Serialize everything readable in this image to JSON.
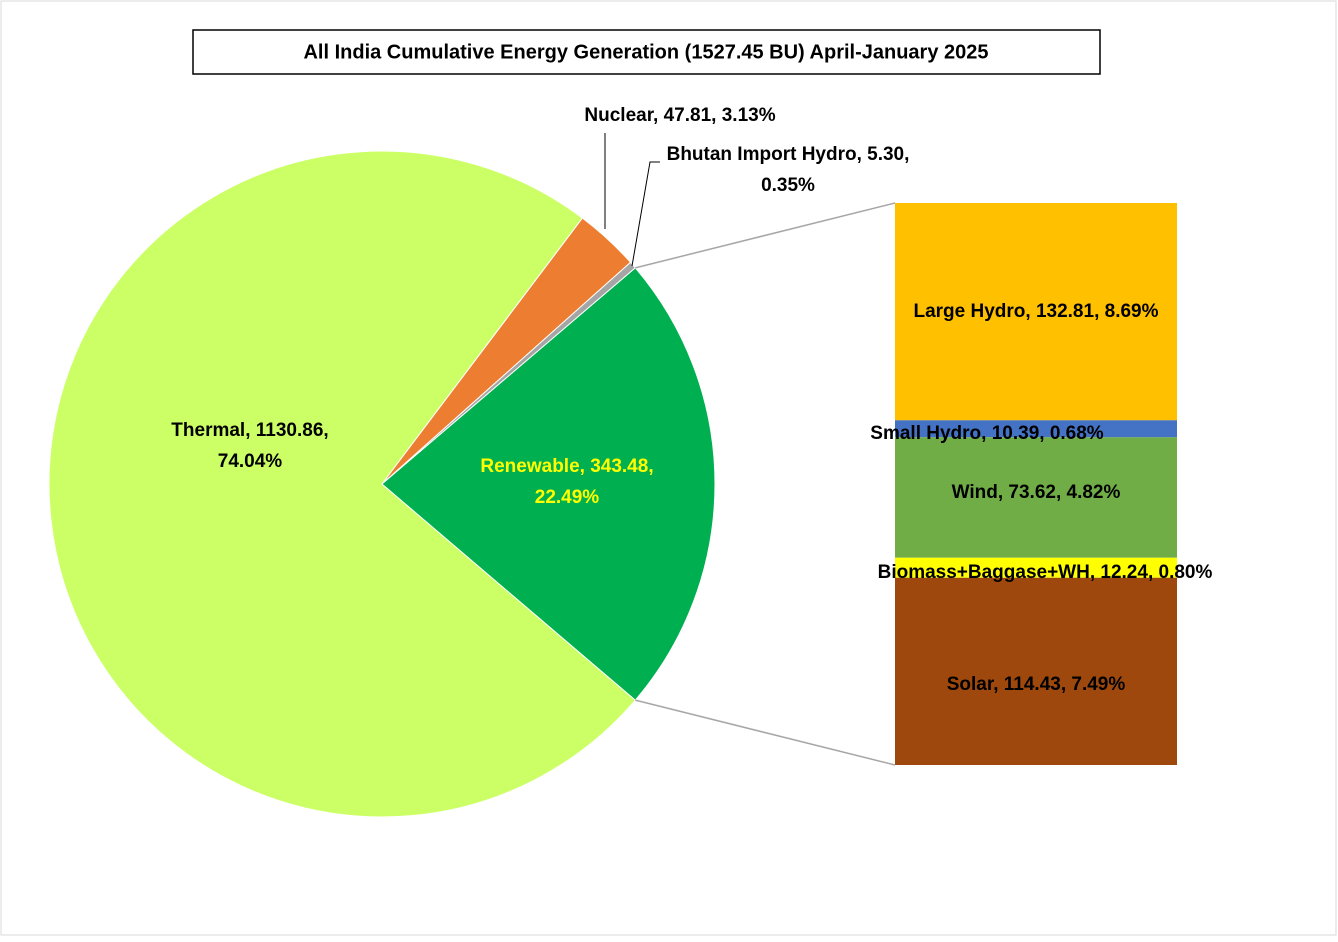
{
  "chart_data": {
    "type": "pie",
    "title": "All India Cumulative Energy Generation  (1527.45 BU) April-January 2025",
    "values": [
      1130.86,
      47.81,
      5.3,
      343.48
    ],
    "value_labels": [
      "Thermal, 1130.86, 74.04%",
      "Nuclear, 47.81, 3.13%",
      "Bhutan Import Hydro, 5.30, 0.35%",
      "Renewable, 343.48, 22.49%"
    ],
    "colors": [
      "#ccff66",
      "#ed7d31",
      "#a5a5a5",
      "#00b050"
    ],
    "breakdown": {
      "type": "bar",
      "values": [
        132.81,
        10.39,
        73.62,
        12.24,
        114.43
      ],
      "value_labels": [
        "Large Hydro, 132.81, 8.69%",
        "Small Hydro, 10.39, 0.68%",
        "Wind, 73.62, 4.82%",
        "Biomass+Baggase+WH, 12.24, 0.80%",
        "Solar, 114.43, 7.49%"
      ],
      "colors": [
        "#ffc000",
        "#4472c4",
        "#70ad47",
        "#ffff00",
        "#9e480e"
      ]
    }
  }
}
